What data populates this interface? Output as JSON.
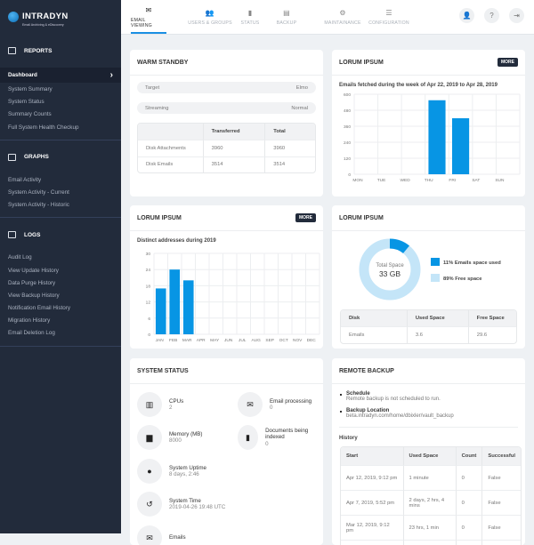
{
  "brand": {
    "name": "INTRADYN",
    "tagline": "Email Archiving & eDiscovery"
  },
  "nav": {
    "tabs": [
      {
        "label": "EMAIL VIEWING",
        "icon": "envelope-open-icon",
        "active": true
      },
      {
        "label": "USERS & GROUPS",
        "icon": "users-icon"
      },
      {
        "label": "STATUS",
        "icon": "bar-chart-icon"
      },
      {
        "label": "BACKUP",
        "icon": "server-icon"
      },
      {
        "label": "MAINTAINANCE",
        "icon": "gear-icon"
      },
      {
        "label": "CONFIGURATION",
        "icon": "sliders-icon"
      }
    ],
    "actions": [
      {
        "icon": "user-icon"
      },
      {
        "icon": "help-icon"
      },
      {
        "icon": "logout-icon"
      }
    ]
  },
  "sidebar": {
    "sections": [
      {
        "title": "REPORTS",
        "icon": "reports-icon",
        "items": [
          "Dashboard",
          "System Summary",
          "System Status",
          "Summary Counts",
          "Full System Health Checkup"
        ]
      },
      {
        "title": "GRAPHS",
        "icon": "line-chart-icon",
        "items": [
          "Email Activity",
          "System Activity - Current",
          "System Activity - Historic"
        ]
      },
      {
        "title": "LOGS",
        "icon": "logs-icon",
        "items": [
          "Audit Log",
          "View Update History",
          "Data Purge History",
          "View Backup History",
          "Notification Email History",
          "Migration History",
          "Email Deletion Log"
        ]
      }
    ],
    "active": "Dashboard"
  },
  "warm_standby": {
    "title": "WARM STANDBY",
    "target_label": "Target",
    "target_value": "Elmo",
    "streaming_label": "Streaming",
    "streaming_value": "Normal",
    "columns": [
      "",
      "Transferred",
      "Total"
    ],
    "rows": [
      [
        "Disk Attachments",
        "3960",
        "3960"
      ],
      [
        "Disk Emails",
        "3514",
        "3514"
      ]
    ]
  },
  "weekly": {
    "title": "LORUM IPSUM",
    "more": "MORE"
  },
  "monthly": {
    "title": "LORUM IPSUM",
    "more": "MORE"
  },
  "disk": {
    "title": "LORUM IPSUM",
    "center_label": "Total Space",
    "center_value": "33 GB",
    "legend": [
      {
        "label": "11% Emails space used",
        "color": "#0795e4",
        "percent": 11
      },
      {
        "label": "89% Free space",
        "color": "#c4e5f8",
        "percent": 89
      }
    ],
    "columns": [
      "Disk",
      "Used Space",
      "Free Space"
    ],
    "rows": [
      [
        "Emails",
        "3.6",
        "29.6"
      ]
    ]
  },
  "system_status": {
    "title": "SYSTEM STATUS",
    "items": [
      {
        "label": "CPUs",
        "value": "2",
        "icon": "cpu-icon"
      },
      {
        "label": "Email processing",
        "value": "0",
        "icon": "mail-icon"
      },
      {
        "label": "Memory (MB)",
        "value": "8000",
        "icon": "memory-card-icon"
      },
      {
        "label": "Documents being indexed",
        "value": "0",
        "icon": "document-icon"
      },
      {
        "label": "System Uptime",
        "value": "8 days, 2:46",
        "icon": "uptime-icon"
      },
      {
        "label": "System Time",
        "value": "2019-04-26 19:48 UTC",
        "icon": "history-icon"
      },
      {
        "label": "Emails",
        "value": "",
        "icon": "email-count-icon"
      }
    ]
  },
  "remote_backup": {
    "title": "REMOTE BACKUP",
    "schedule_label": "Schedule",
    "schedule_value": "Remote backup is not scheduled to run.",
    "location_label": "Backup Location",
    "location_value": "beta.intradyn.com/home/dbixler/vault_backup",
    "history_label": "History",
    "columns": [
      "Start",
      "Used Space",
      "Count",
      "Successful"
    ],
    "rows": [
      [
        "Apr 12, 2019, 9:12 pm",
        "1 minute",
        "0",
        "False"
      ],
      [
        "Apr 7, 2019, 5:52 pm",
        "2 days, 2 hrs, 4 mins",
        "0",
        "False"
      ],
      [
        "Mar 12, 2019, 9:12 pm",
        "23 hrs, 1 min",
        "0",
        "False"
      ],
      [
        "Feb 12, 2019, 9:12 pm",
        "1 hr, 32 mns",
        "0",
        "False"
      ]
    ]
  },
  "chart_data": [
    {
      "type": "bar",
      "title": "Emails fetched during the week of Apr 22, 2019 to Apr 28, 2019",
      "categories": [
        "MON",
        "TUE",
        "WED",
        "THU",
        "FRI",
        "SAT",
        "SUN"
      ],
      "values": [
        0,
        0,
        0,
        555,
        420,
        0,
        0
      ],
      "ylim": [
        0,
        600
      ],
      "yticks": [
        0,
        120,
        240,
        360,
        480,
        600
      ],
      "grid": true,
      "color": "#0795e4"
    },
    {
      "type": "bar",
      "title": "Distinct addresses during 2019",
      "categories": [
        "JAN",
        "FEB",
        "MAR",
        "APR",
        "MAY",
        "JUN",
        "JUL",
        "AUG",
        "SEP",
        "OCT",
        "NOV",
        "DEC"
      ],
      "values": [
        17,
        24,
        20,
        0,
        0,
        0,
        0,
        0,
        0,
        0,
        0,
        0
      ],
      "ylim": [
        0,
        30
      ],
      "yticks": [
        0,
        6,
        12,
        18,
        24,
        30
      ],
      "grid": true,
      "color": "#0795e4"
    }
  ]
}
